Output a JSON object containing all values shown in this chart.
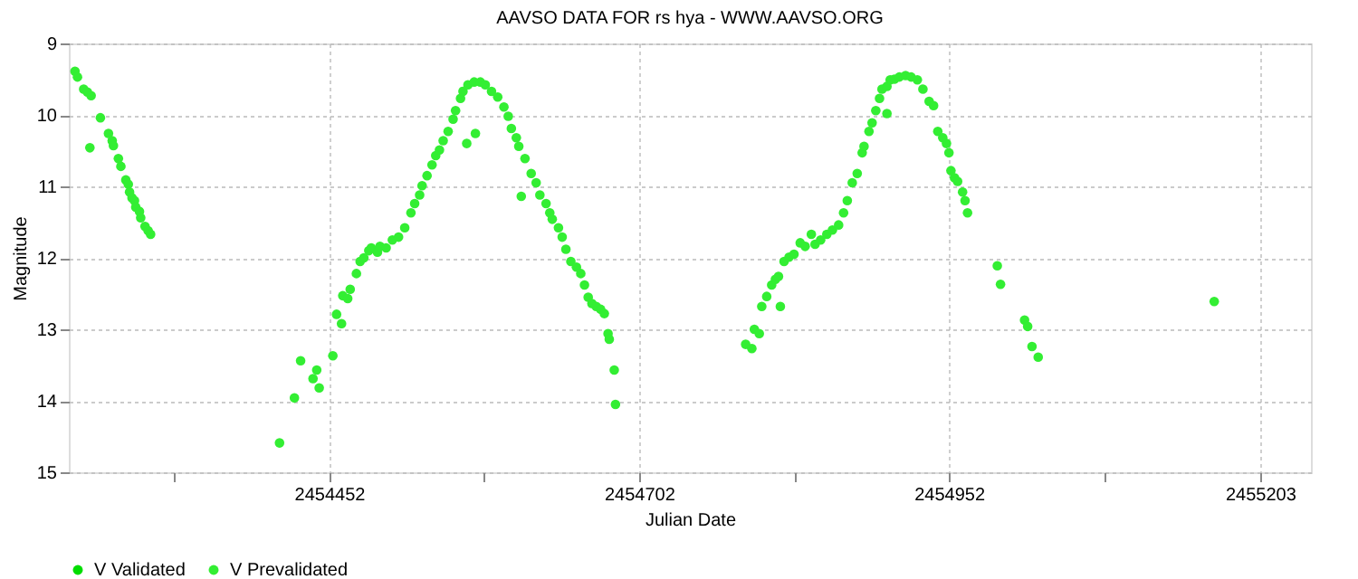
{
  "chart_data": {
    "type": "scatter",
    "title": "AAVSO DATA FOR rs hya - WWW.AAVSO.ORG",
    "xlabel": "Julian Date",
    "ylabel": "Magnitude",
    "xlim": [
      2454242,
      2455244
    ],
    "ylim": [
      15,
      9
    ],
    "xticks": [
      {
        "value": 2454327,
        "label": null
      },
      2454452,
      {
        "value": 2454577,
        "label": null
      },
      2454702,
      {
        "value": 2454827,
        "label": null
      },
      2454952,
      {
        "value": 2455078,
        "label": null
      },
      2455203
    ],
    "yticks": [
      9,
      10,
      11,
      12,
      13,
      14,
      15
    ],
    "grid": true,
    "legend": "bottom",
    "marker": "circle",
    "series": [
      {
        "name": "V Validated",
        "color": "#00dd00"
      },
      {
        "name": "V Prevalidated",
        "color": "#33ee33",
        "x": [
          2454247,
          2454249,
          2454254,
          2454257,
          2454260,
          2454259,
          2454267.5,
          2454274,
          2454277,
          2454278,
          2454282,
          2454284,
          2454288,
          2454290,
          2454291,
          2454293,
          2454295,
          2454296,
          2454299,
          2454300,
          2454303.5,
          2454306,
          2454308,
          2454412,
          2454424,
          2454429,
          2454439,
          2454442,
          2454444,
          2454455,
          2454458,
          2454462,
          2454463,
          2454467,
          2454469,
          2454474,
          2454477,
          2454480,
          2454484,
          2454486,
          2454491,
          2454493,
          2454498,
          2454503,
          2454508,
          2454513,
          2454518,
          2454521,
          2454525,
          2454527,
          2454531,
          2454535,
          2454538,
          2454541,
          2454544,
          2454548,
          2454552,
          2454554,
          2454558,
          2454560,
          2454564,
          2454569,
          2454574,
          2454578,
          2454583,
          2454588,
          2454593,
          2454596.5,
          2454599,
          2454603,
          2454605,
          2454610,
          2454615,
          2454619,
          2454622,
          2454627,
          2454630,
          2454632,
          2454637,
          2454640,
          2454643,
          2454647,
          2454651.5,
          2454655,
          2454658,
          2454661,
          2454664,
          2454667.5,
          2454671,
          2454674,
          2454677,
          2454678,
          2454682,
          2454683,
          2454563,
          2454570,
          2454607,
          2454788,
          2454793,
          2454795,
          2454799,
          2454801,
          2454805,
          2454809,
          2454812,
          2454814.5,
          2454816,
          2454819,
          2454823,
          2454827,
          2454832,
          2454836,
          2454841,
          2454844,
          2454848.5,
          2454853.5,
          2454858,
          2454863,
          2454867,
          2454870,
          2454874,
          2454878,
          2454882,
          2454883.5,
          2454887.5,
          2454890,
          2454893,
          2454896,
          2454898,
          2454902,
          2454904.6,
          2454908,
          2454912,
          2454917,
          2454921.5,
          2454926.5,
          2454931,
          2454936,
          2454939.6,
          2454943,
          2454947,
          2454950,
          2454952,
          2454953.6,
          2454956.5,
          2454959,
          2454963,
          2454965,
          2454967,
          2454902,
          2454991,
          2454993.6,
          2455013,
          2455015.5,
          2455019,
          2455024,
          2455166
        ],
        "values": [
          9.39,
          9.47,
          9.64,
          9.68,
          9.73,
          10.46,
          10.04,
          10.26,
          10.36,
          10.43,
          10.61,
          10.72,
          10.91,
          10.97,
          11.08,
          11.16,
          11.2,
          11.29,
          11.35,
          11.44,
          11.56,
          11.62,
          11.67,
          14.59,
          13.96,
          13.44,
          13.69,
          13.57,
          13.82,
          13.37,
          12.79,
          12.92,
          12.53,
          12.57,
          12.44,
          12.22,
          12.05,
          12.0,
          11.9,
          11.86,
          11.92,
          11.84,
          11.86,
          11.75,
          11.71,
          11.58,
          11.37,
          11.24,
          11.12,
          10.99,
          10.85,
          10.7,
          10.57,
          10.49,
          10.36,
          10.23,
          10.06,
          9.94,
          9.77,
          9.67,
          9.58,
          9.54,
          9.54,
          9.58,
          9.67,
          9.75,
          9.89,
          10.02,
          10.19,
          10.32,
          10.44,
          10.61,
          10.82,
          10.95,
          11.12,
          11.24,
          11.37,
          11.46,
          11.58,
          11.71,
          11.88,
          12.05,
          12.13,
          12.22,
          12.38,
          12.55,
          12.64,
          12.68,
          12.72,
          12.78,
          13.06,
          13.14,
          13.57,
          14.05,
          10.4,
          10.26,
          11.14,
          13.21,
          13.27,
          13.0,
          13.06,
          12.68,
          12.54,
          12.38,
          12.3,
          12.26,
          12.68,
          12.05,
          11.99,
          11.95,
          11.79,
          11.84,
          11.67,
          11.81,
          11.75,
          11.67,
          11.61,
          11.54,
          11.37,
          11.2,
          10.95,
          10.82,
          10.53,
          10.44,
          10.23,
          10.11,
          9.94,
          9.77,
          9.64,
          9.6,
          9.51,
          9.5,
          9.47,
          9.45,
          9.47,
          9.51,
          9.64,
          9.81,
          9.87,
          10.23,
          10.32,
          10.4,
          10.53,
          10.78,
          10.88,
          10.93,
          11.08,
          11.2,
          11.37,
          9.98,
          12.11,
          12.37,
          12.87,
          12.96,
          13.24,
          13.39,
          12.61
        ]
      }
    ]
  }
}
